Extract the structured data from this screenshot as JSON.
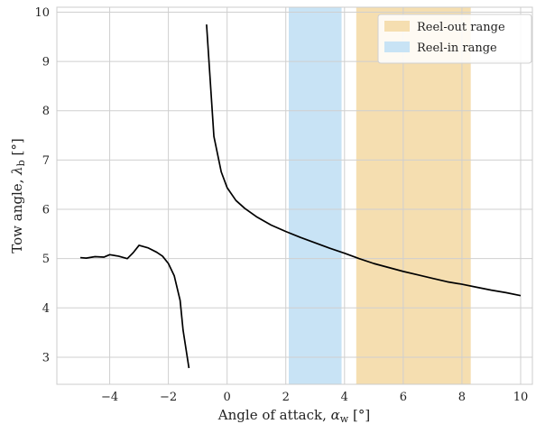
{
  "chart_data": {
    "type": "line",
    "title": "",
    "xlabel": "Angle of attack, α_w [°]",
    "ylabel": "Tow angle, λ_b [°]",
    "xlim": [
      -5.8,
      10.4
    ],
    "ylim": [
      2.45,
      10.1
    ],
    "xticks": [
      -4,
      -2,
      0,
      2,
      4,
      6,
      8,
      10
    ],
    "yticks": [
      3,
      4,
      5,
      6,
      7,
      8,
      9,
      10
    ],
    "grid": true,
    "legend_position": "top-right",
    "spans": [
      {
        "name": "Reel-out range",
        "x": [
          4.4,
          8.3
        ],
        "color": "#f5deb0"
      },
      {
        "name": "Reel-in range",
        "x": [
          2.1,
          3.9
        ],
        "color": "#c8e3f5"
      }
    ],
    "series": [
      {
        "color": "#000000",
        "points": [
          [
            -5.0,
            5.02
          ],
          [
            -4.8,
            5.01
          ],
          [
            -4.5,
            5.04
          ],
          [
            -4.2,
            5.03
          ],
          [
            -4.0,
            5.08
          ],
          [
            -3.7,
            5.05
          ],
          [
            -3.4,
            5.0
          ],
          [
            -3.2,
            5.12
          ],
          [
            -3.0,
            5.27
          ],
          [
            -2.7,
            5.22
          ],
          [
            -2.4,
            5.13
          ],
          [
            -2.2,
            5.05
          ],
          [
            -2.0,
            4.9
          ],
          [
            -1.8,
            4.65
          ],
          [
            -1.6,
            4.15
          ],
          [
            -1.5,
            3.55
          ],
          [
            -1.3,
            2.78
          ]
        ]
      },
      {
        "color": "#000000",
        "points": [
          [
            -0.7,
            9.75
          ],
          [
            -0.45,
            7.48
          ],
          [
            -0.2,
            6.76
          ],
          [
            0.0,
            6.44
          ],
          [
            0.3,
            6.18
          ],
          [
            0.6,
            6.02
          ],
          [
            1.0,
            5.85
          ],
          [
            1.5,
            5.68
          ],
          [
            2.0,
            5.55
          ],
          [
            2.5,
            5.43
          ],
          [
            3.0,
            5.32
          ],
          [
            3.5,
            5.21
          ],
          [
            4.0,
            5.11
          ],
          [
            4.5,
            5.0
          ],
          [
            5.0,
            4.9
          ],
          [
            5.5,
            4.82
          ],
          [
            6.0,
            4.74
          ],
          [
            6.5,
            4.67
          ],
          [
            7.0,
            4.6
          ],
          [
            7.5,
            4.53
          ],
          [
            8.0,
            4.48
          ],
          [
            8.5,
            4.42
          ],
          [
            9.0,
            4.36
          ],
          [
            9.5,
            4.31
          ],
          [
            10.0,
            4.25
          ]
        ]
      }
    ]
  }
}
